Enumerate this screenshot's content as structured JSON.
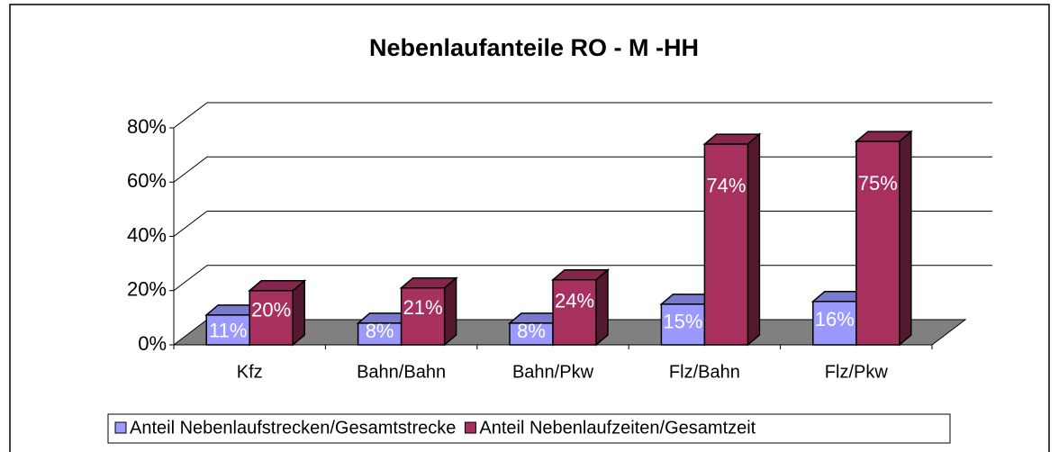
{
  "chart_data": {
    "type": "bar3d",
    "title": "Nebenlaufanteile RO - M -HH",
    "categories": [
      "Kfz",
      "Bahn/Bahn",
      "Bahn/Pkw",
      "Flz/Bahn",
      "Flz/Pkw"
    ],
    "series": [
      {
        "name": "Anteil Nebenlaufstrecken/Gesamtstrecke",
        "color": "#9999ff",
        "values": [
          11,
          8,
          8,
          15,
          16
        ],
        "value_labels": [
          "11%",
          "8%",
          "8%",
          "15%",
          "16%"
        ]
      },
      {
        "name": "Anteil Nebenlaufzeiten/Gesamtzeit",
        "color": "#a8305f",
        "values": [
          20,
          21,
          24,
          74,
          75
        ],
        "value_labels": [
          "20%",
          "21%",
          "24%",
          "74%",
          "75%"
        ]
      }
    ],
    "ylim": [
      0,
      80
    ],
    "yticks": [
      {
        "value": 0,
        "label": "0%"
      },
      {
        "value": 20,
        "label": "20%"
      },
      {
        "value": 40,
        "label": "40%"
      },
      {
        "value": 60,
        "label": "60%"
      },
      {
        "value": 80,
        "label": "80%"
      }
    ],
    "grid": true,
    "legend": "bottom"
  }
}
